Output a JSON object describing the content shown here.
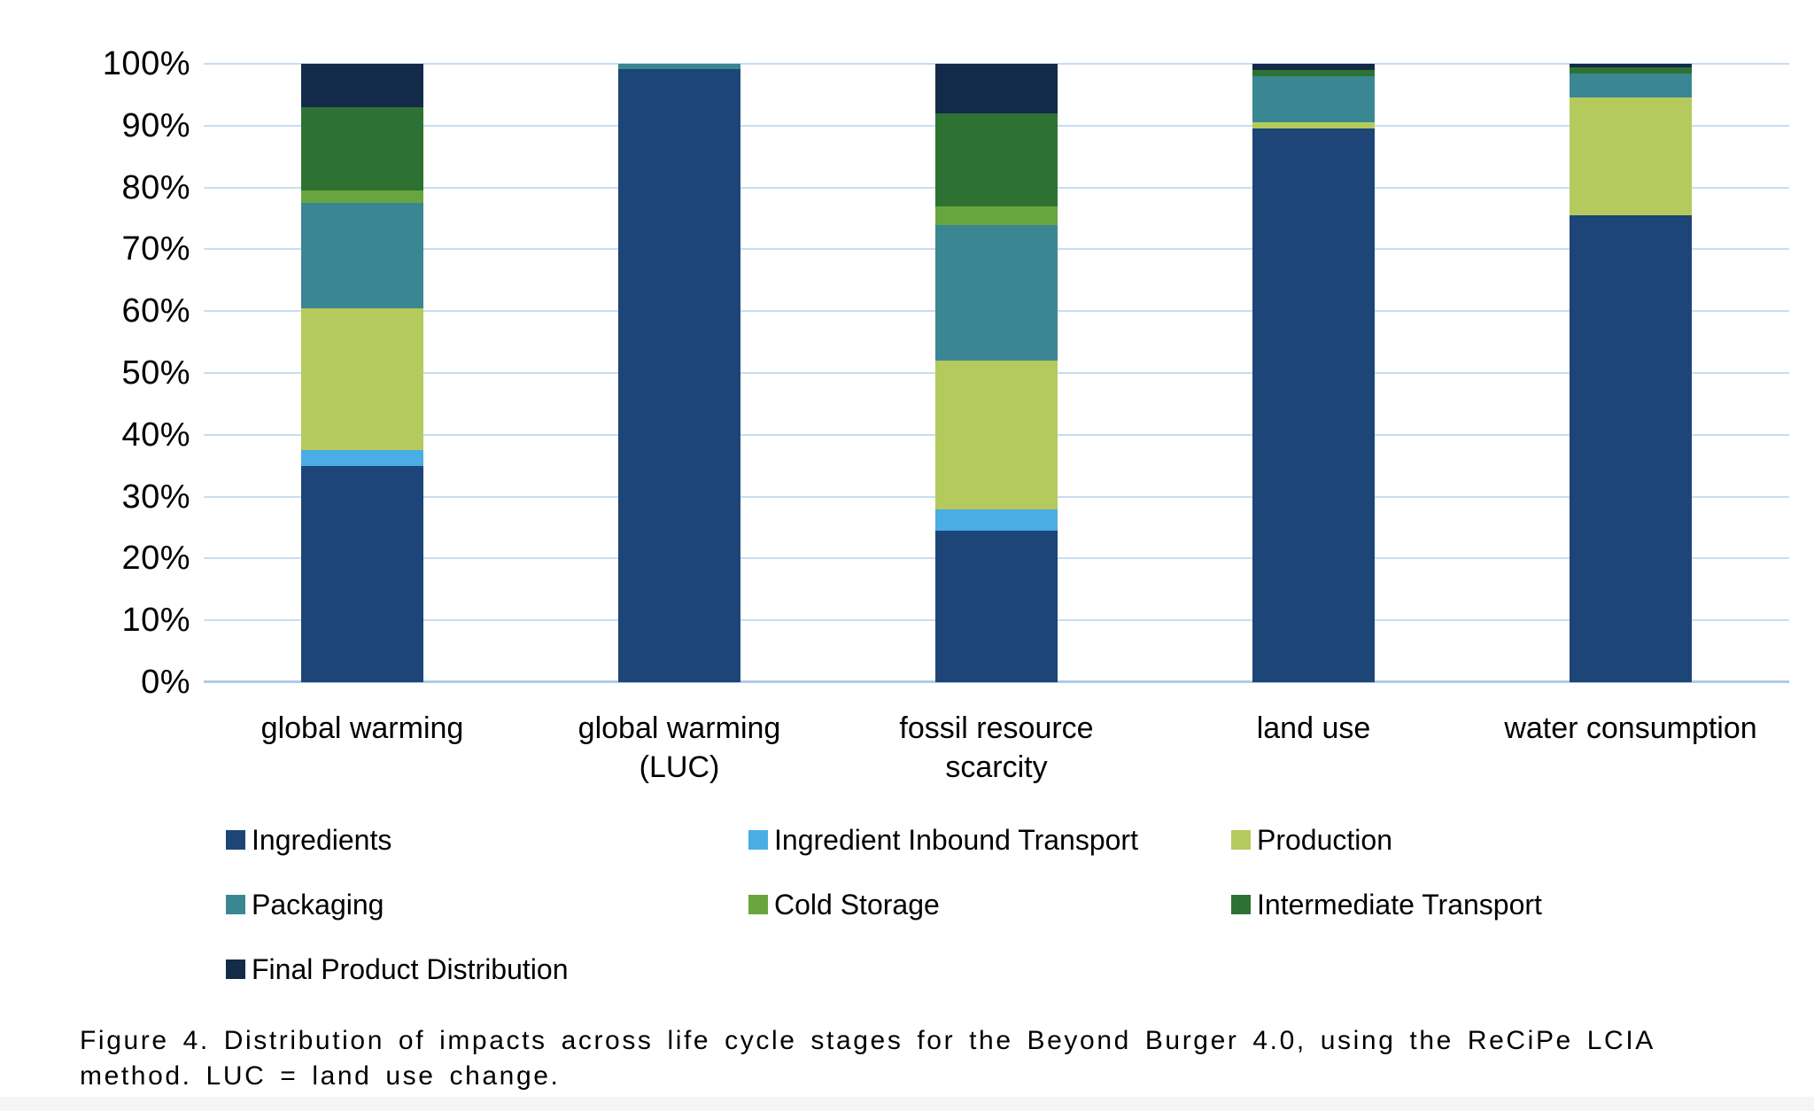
{
  "figure": {
    "caption": "Figure 4. Distribution of impacts across life cycle stages for the Beyond Burger 4.0, using the ReCiPe LCIA method. LUC = land use change."
  },
  "chart_data": {
    "type": "bar",
    "variant": "stacked-100-percent-column",
    "title": "",
    "xlabel": "",
    "ylabel": "",
    "grid": true,
    "gridline_color": "#c8ddf2",
    "baseline_color": "#aecbe8",
    "legend_position": "bottom",
    "categories": [
      "global warming",
      "global warming\n(LUC)",
      "fossil resource\nscarcity",
      "land use",
      "water consumption"
    ],
    "series": [
      {
        "name": "Ingredients",
        "color": "#1d4577",
        "values": [
          35,
          99.2,
          24.5,
          89.5,
          75.5
        ]
      },
      {
        "name": "Ingredient Inbound Transport",
        "color": "#4aade3",
        "values": [
          2.5,
          0,
          3.5,
          0,
          0
        ]
      },
      {
        "name": "Production",
        "color": "#b4ca5d",
        "values": [
          23,
          0,
          24,
          1,
          19
        ]
      },
      {
        "name": "Packaging",
        "color": "#3a8793",
        "values": [
          17,
          0.8,
          22,
          7.5,
          4
        ]
      },
      {
        "name": "Cold Storage",
        "color": "#69a53f",
        "values": [
          2,
          0,
          3,
          0,
          0
        ]
      },
      {
        "name": "Intermediate Transport",
        "color": "#2e7233",
        "values": [
          13.5,
          0,
          15,
          1,
          1
        ]
      },
      {
        "name": "Final Product Distribution",
        "color": "#132b49",
        "values": [
          7,
          0,
          8,
          1,
          0.5
        ]
      }
    ],
    "y_axis": {
      "min": 0,
      "max": 100,
      "tick_step": 10,
      "ticks": [
        "0%",
        "10%",
        "20%",
        "30%",
        "40%",
        "50%",
        "60%",
        "70%",
        "80%",
        "90%",
        "100%"
      ]
    },
    "legend_order": [
      "Ingredients",
      "Ingredient Inbound Transport",
      "Production",
      "Packaging",
      "Cold Storage",
      "Intermediate Transport",
      "Final Product Distribution"
    ]
  }
}
